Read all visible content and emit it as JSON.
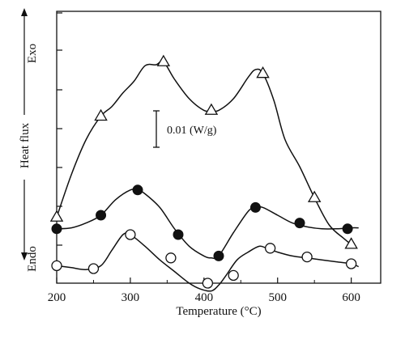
{
  "chart_data": {
    "type": "line",
    "title": "",
    "xlabel": "Temperature (°C)",
    "ylabel": "Heat flux",
    "y_top_label": "Exo",
    "y_bottom_label": "Endo",
    "scale_bar_label": "0.01 (W/g)",
    "scale_bar_value": 0.01,
    "scale_bar_unit": "W/g",
    "xlim": [
      200,
      640
    ],
    "xticks": [
      200,
      300,
      400,
      500,
      600
    ],
    "ylim": [
      -0.12,
      0.02
    ],
    "y_tick_labels_visible": false,
    "grid": false,
    "legend": "none",
    "series": [
      {
        "marker": "triangle-open",
        "x": [
          200,
          220,
          240,
          260,
          275,
          290,
          305,
          320,
          335,
          345,
          360,
          380,
          400,
          410,
          420,
          440,
          460,
          470,
          480,
          495,
          510,
          530,
          550,
          570,
          590,
          600,
          605
        ],
        "y": [
          -0.086,
          -0.064,
          -0.046,
          -0.034,
          -0.029,
          -0.022,
          -0.016,
          -0.008,
          -0.0075,
          -0.006,
          -0.015,
          -0.025,
          -0.031,
          -0.031,
          -0.031,
          -0.025,
          -0.014,
          -0.01,
          -0.012,
          -0.026,
          -0.046,
          -0.06,
          -0.076,
          -0.09,
          -0.097,
          -0.1,
          -0.101
        ],
        "markers_x": [
          200,
          260,
          345,
          410,
          480,
          550,
          600
        ],
        "markers_y": [
          -0.086,
          -0.034,
          -0.006,
          -0.031,
          -0.012,
          -0.076,
          -0.1
        ]
      },
      {
        "marker": "circle-filled",
        "x": [
          200,
          220,
          240,
          260,
          280,
          300,
          310,
          320,
          340,
          360,
          380,
          400,
          410,
          420,
          440,
          460,
          470,
          480,
          500,
          520,
          540,
          560,
          580,
          600,
          610
        ],
        "y": [
          -0.092,
          -0.0915,
          -0.089,
          -0.085,
          -0.077,
          -0.072,
          -0.072,
          -0.074,
          -0.081,
          -0.092,
          -0.101,
          -0.106,
          -0.107,
          -0.106,
          -0.094,
          -0.083,
          -0.081,
          -0.081,
          -0.085,
          -0.089,
          -0.091,
          -0.092,
          -0.092,
          -0.0915,
          -0.0915
        ],
        "markers_x": [
          200,
          260,
          310,
          365,
          420,
          470,
          530,
          595
        ],
        "markers_y": [
          -0.092,
          -0.085,
          -0.072,
          -0.095,
          -0.106,
          -0.081,
          -0.089,
          -0.092
        ]
      },
      {
        "marker": "circle-open",
        "x": [
          200,
          220,
          240,
          260,
          275,
          290,
          300,
          320,
          340,
          360,
          380,
          395,
          410,
          420,
          430,
          445,
          460,
          475,
          485,
          500,
          520,
          540,
          560,
          580,
          600,
          610
        ],
        "y": [
          -0.111,
          -0.112,
          -0.113,
          -0.111,
          -0.103,
          -0.095,
          -0.095,
          -0.101,
          -0.108,
          -0.114,
          -0.12,
          -0.123,
          -0.124,
          -0.121,
          -0.116,
          -0.108,
          -0.104,
          -0.101,
          -0.102,
          -0.104,
          -0.106,
          -0.107,
          -0.108,
          -0.109,
          -0.11,
          -0.1115
        ],
        "markers_x": [
          200,
          250,
          300,
          355,
          405,
          440,
          490,
          540,
          600
        ],
        "markers_y": [
          -0.111,
          -0.1125,
          -0.095,
          -0.107,
          -0.12,
          -0.116,
          -0.102,
          -0.1065,
          -0.11
        ]
      }
    ]
  }
}
